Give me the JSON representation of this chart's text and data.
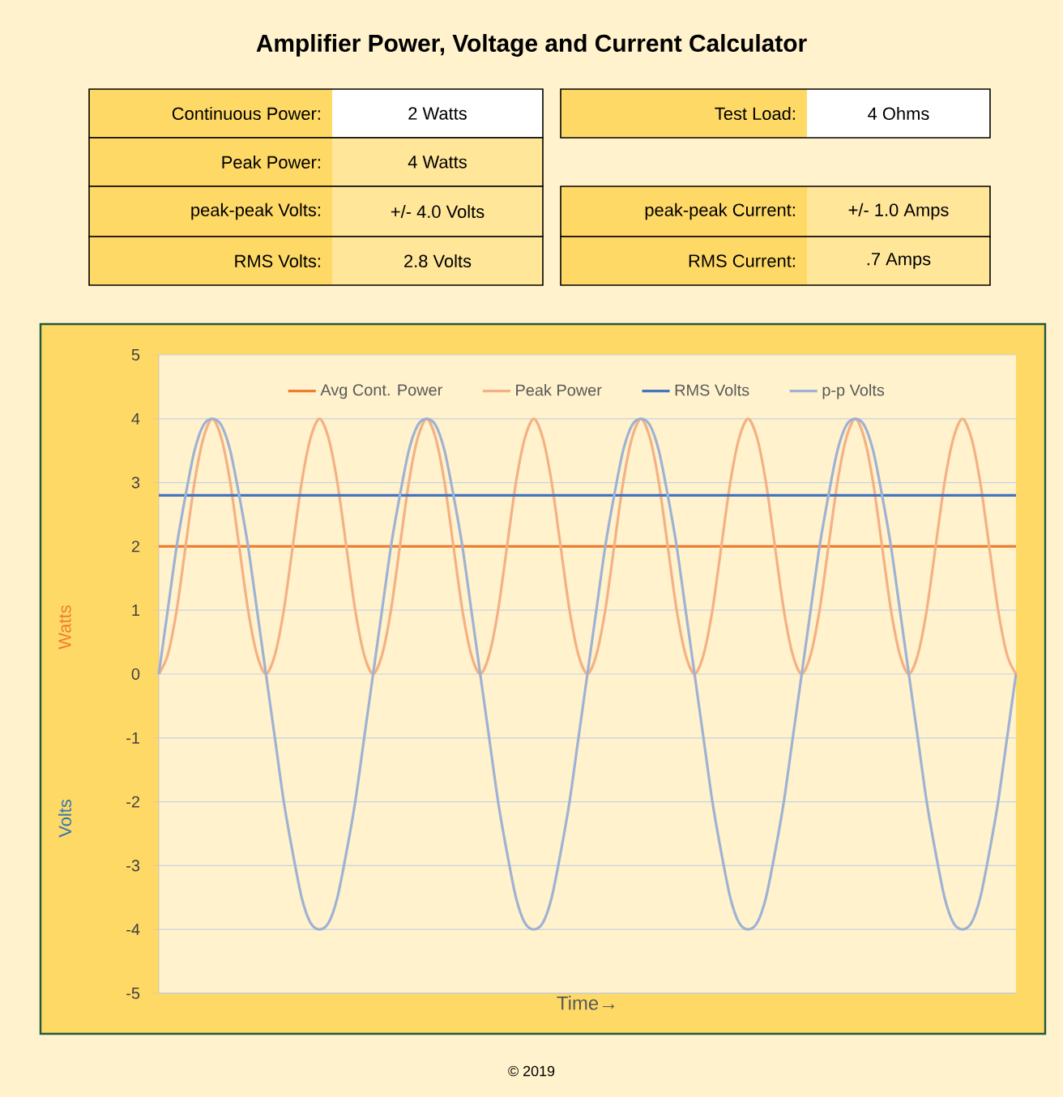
{
  "chart_data": [
    {
      "type": "other",
      "title": "Amplifier Power, Voltage and Current Calculator",
      "annotations": [
        "Continuous Power:",
        "2  Watts",
        "Peak Power:",
        "4  Watts",
        "peak-peak Volts:",
        "+/- 4.0  Volts",
        "RMS Volts:",
        "2.8  Volts",
        "Test Load:",
        "4  Ohms",
        "peak-peak Current:",
        "+/- 1.0  Amps",
        "RMS Current:",
        ".7  Amps"
      ]
    },
    {
      "type": "line",
      "xlabel": "Time→",
      "ylabel": "Watts",
      "y2label": "Volts",
      "ylim": [
        -5,
        5
      ],
      "yticks": [
        -5,
        -4,
        -3,
        -2,
        -1,
        0,
        1,
        2,
        3,
        4,
        5
      ],
      "grid": "y",
      "legend": "top",
      "tick_labels": "y",
      "marker": "none",
      "line_style": "solid",
      "annotations": [
        "© 2019"
      ],
      "categories": [
        null,
        null,
        null,
        null,
        null,
        null,
        null,
        null,
        null,
        null,
        null,
        null,
        null,
        null,
        null,
        null,
        null,
        null,
        null,
        null,
        null,
        null,
        null,
        null,
        null,
        null,
        null,
        null,
        null,
        null,
        null,
        null,
        null,
        null,
        null,
        null,
        null,
        null,
        null,
        null,
        null,
        null,
        null,
        null,
        null,
        null,
        null,
        null,
        null,
        null,
        null,
        null,
        null,
        null,
        null,
        null,
        null,
        null,
        null,
        null,
        null,
        null,
        null,
        null,
        null,
        null,
        null,
        null,
        null,
        null,
        null,
        null,
        null,
        null,
        null,
        null,
        null,
        null,
        null,
        null,
        null,
        null,
        null,
        null,
        null,
        null,
        null,
        null,
        null,
        null,
        null,
        null,
        null,
        null,
        null,
        null,
        null
      ],
      "series": [
        {
          "name": "Avg Cont. Power",
          "color": "#ed7d31",
          "values": [
            2,
            2,
            2,
            2,
            2,
            2,
            2,
            2,
            2,
            2,
            2,
            2,
            2,
            2,
            2,
            2,
            2,
            2,
            2,
            2,
            2,
            2,
            2,
            2,
            2,
            2,
            2,
            2,
            2,
            2,
            2,
            2,
            2,
            2,
            2,
            2,
            2,
            2,
            2,
            2,
            2,
            2,
            2,
            2,
            2,
            2,
            2,
            2,
            2,
            2,
            2,
            2,
            2,
            2,
            2,
            2,
            2,
            2,
            2,
            2,
            2,
            2,
            2,
            2,
            2,
            2,
            2,
            2,
            2,
            2,
            2,
            2,
            2,
            2,
            2,
            2,
            2,
            2,
            2,
            2,
            2,
            2,
            2,
            2,
            2,
            2,
            2,
            2,
            2,
            2,
            2,
            2,
            2,
            2,
            2,
            2,
            2
          ]
        },
        {
          "name": "Peak Power",
          "color": "#f4b183",
          "values": [
            0,
            0.3,
            1,
            2,
            3,
            3.7,
            4,
            3.7,
            3,
            2,
            1,
            0.3,
            0,
            0.3,
            1,
            2,
            3,
            3.7,
            4,
            3.7,
            3,
            2,
            1,
            0.3,
            0,
            0.3,
            1,
            2,
            3,
            3.7,
            4,
            3.7,
            3,
            2,
            1,
            0.3,
            0,
            0.3,
            1,
            2,
            3,
            3.7,
            4,
            3.7,
            3,
            2,
            1,
            0.3,
            0,
            0.3,
            1,
            2,
            3,
            3.7,
            4,
            3.7,
            3,
            2,
            1,
            0.3,
            0,
            0.3,
            1,
            2,
            3,
            3.7,
            4,
            3.7,
            3,
            2,
            1,
            0.3,
            0,
            0.3,
            1,
            2,
            3,
            3.7,
            4,
            3.7,
            3,
            2,
            1,
            0.3,
            0,
            0.3,
            1,
            2,
            3,
            3.7,
            4,
            3.7,
            3,
            2,
            1,
            0.3,
            0
          ]
        },
        {
          "name": "RMS Volts",
          "color": "#4472c4",
          "values": [
            2.8,
            2.8,
            2.8,
            2.8,
            2.8,
            2.8,
            2.8,
            2.8,
            2.8,
            2.8,
            2.8,
            2.8,
            2.8,
            2.8,
            2.8,
            2.8,
            2.8,
            2.8,
            2.8,
            2.8,
            2.8,
            2.8,
            2.8,
            2.8,
            2.8,
            2.8,
            2.8,
            2.8,
            2.8,
            2.8,
            2.8,
            2.8,
            2.8,
            2.8,
            2.8,
            2.8,
            2.8,
            2.8,
            2.8,
            2.8,
            2.8,
            2.8,
            2.8,
            2.8,
            2.8,
            2.8,
            2.8,
            2.8,
            2.8,
            2.8,
            2.8,
            2.8,
            2.8,
            2.8,
            2.8,
            2.8,
            2.8,
            2.8,
            2.8,
            2.8,
            2.8,
            2.8,
            2.8,
            2.8,
            2.8,
            2.8,
            2.8,
            2.8,
            2.8,
            2.8,
            2.8,
            2.8,
            2.8,
            2.8,
            2.8,
            2.8,
            2.8,
            2.8,
            2.8,
            2.8,
            2.8,
            2.8,
            2.8,
            2.8,
            2.8,
            2.8,
            2.8,
            2.8,
            2.8,
            2.8,
            2.8,
            2.8,
            2.8,
            2.8,
            2.8,
            2.8,
            2.8
          ]
        },
        {
          "name": "p-p Volts",
          "color": "#9fb2d4",
          "values": [
            0,
            1,
            2,
            2.8,
            3.5,
            3.9,
            4,
            3.9,
            3.5,
            2.8,
            2,
            1,
            0,
            -1,
            -2,
            -2.8,
            -3.5,
            -3.9,
            -4,
            -3.9,
            -3.5,
            -2.8,
            -2,
            -1,
            0,
            1,
            2,
            2.8,
            3.5,
            3.9,
            4,
            3.9,
            3.5,
            2.8,
            2,
            1,
            0,
            -1,
            -2,
            -2.8,
            -3.5,
            -3.9,
            -4,
            -3.9,
            -3.5,
            -2.8,
            -2,
            -1,
            0,
            1,
            2,
            2.8,
            3.5,
            3.9,
            4,
            3.9,
            3.5,
            2.8,
            2,
            1,
            0,
            -1,
            -2,
            -2.8,
            -3.5,
            -3.9,
            -4,
            -3.9,
            -3.5,
            -2.8,
            -2,
            -1,
            0,
            1,
            2,
            2.8,
            3.5,
            3.9,
            4,
            3.9,
            3.5,
            2.8,
            2,
            1,
            0,
            -1,
            -2,
            -2.8,
            -3.5,
            -3.9,
            -4,
            -3.9,
            -3.5,
            -2.8,
            -2,
            -1,
            0
          ]
        }
      ]
    }
  ]
}
